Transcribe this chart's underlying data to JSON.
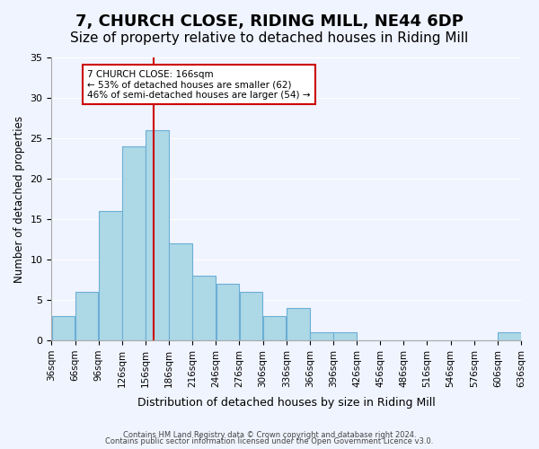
{
  "title": "7, CHURCH CLOSE, RIDING MILL, NE44 6DP",
  "subtitle": "Size of property relative to detached houses in Riding Mill",
  "xlabel": "Distribution of detached houses by size in Riding Mill",
  "ylabel": "Number of detached properties",
  "bar_color": "#ADD8E6",
  "bar_edge_color": "#6baed6",
  "bins": [
    "36sqm",
    "66sqm",
    "96sqm",
    "126sqm",
    "156sqm",
    "186sqm",
    "216sqm",
    "246sqm",
    "276sqm",
    "306sqm",
    "336sqm",
    "366sqm",
    "396sqm",
    "426sqm",
    "456sqm",
    "486sqm",
    "516sqm",
    "546sqm",
    "576sqm",
    "606sqm",
    "636sqm"
  ],
  "counts": [
    3,
    6,
    16,
    24,
    26,
    12,
    8,
    7,
    6,
    3,
    4,
    1,
    1,
    0,
    0,
    0,
    0,
    0,
    0,
    1
  ],
  "bin_width": 30,
  "bin_starts": [
    36,
    66,
    96,
    126,
    156,
    186,
    216,
    246,
    276,
    306,
    336,
    366,
    396,
    426,
    456,
    486,
    516,
    546,
    576,
    606
  ],
  "property_size": 166,
  "vline_color": "#cc0000",
  "annotation_text": "7 CHURCH CLOSE: 166sqm\n← 53% of detached houses are smaller (62)\n46% of semi-detached houses are larger (54) →",
  "annotation_box_color": "#ffffff",
  "annotation_box_edge": "#cc0000",
  "ylim": [
    0,
    35
  ],
  "yticks": [
    0,
    5,
    10,
    15,
    20,
    25,
    30,
    35
  ],
  "footer1": "Contains HM Land Registry data © Crown copyright and database right 2024.",
  "footer2": "Contains public sector information licensed under the Open Government Licence v3.0.",
  "bg_color": "#f0f4ff",
  "title_fontsize": 13,
  "subtitle_fontsize": 11
}
